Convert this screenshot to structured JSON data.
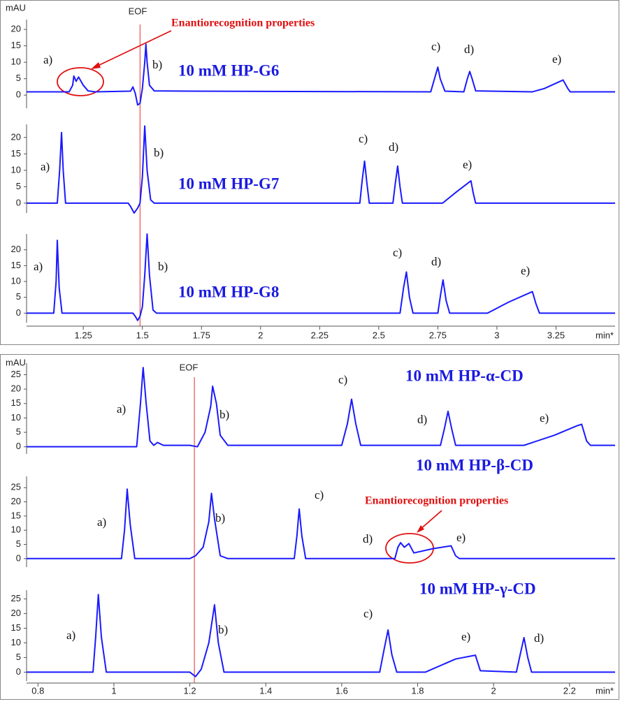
{
  "chart_data": [
    {
      "type": "line",
      "y_label": "mAU",
      "x_label": "min*",
      "xlim": [
        1.01,
        3.5
      ],
      "xticks": [
        1.25,
        1.5,
        1.75,
        2,
        2.25,
        2.5,
        2.75,
        3,
        3.25
      ],
      "eof": {
        "label": "EOF",
        "x": 1.49
      },
      "annotation": "Enantiorecognition properties",
      "series": [
        {
          "name": "10 mM HP-G6",
          "color": "#1a1aff",
          "ylim": [
            -4,
            23
          ],
          "yticks": [
            0,
            5,
            10,
            15,
            20
          ],
          "peak_labels": [
            "a)",
            "b)",
            "c)",
            "d)",
            "e)"
          ],
          "x": [
            1.01,
            1.19,
            1.205,
            1.21,
            1.22,
            1.23,
            1.25,
            1.27,
            1.3,
            1.45,
            1.46,
            1.47,
            1.48,
            1.49,
            1.5,
            1.51,
            1.515,
            1.52,
            1.53,
            1.55,
            1.7,
            2.72,
            2.74,
            2.75,
            2.76,
            2.78,
            2.86,
            2.875,
            2.885,
            2.895,
            2.91,
            3.15,
            3.2,
            3.28,
            3.3,
            3.31,
            3.5
          ],
          "values": [
            1,
            1,
            3,
            5.8,
            4.2,
            5.5,
            3,
            1.3,
            1,
            1.2,
            2.5,
            0.5,
            -3,
            -2.5,
            2,
            10,
            15.5,
            10,
            3,
            1.3,
            1.2,
            1,
            6,
            8.5,
            5,
            1.2,
            1,
            5,
            7.2,
            5,
            1.3,
            1,
            2,
            4.6,
            2,
            1,
            1
          ]
        },
        {
          "name": "10 mM HP-G7",
          "color": "#1a1aff",
          "ylim": [
            -3,
            24
          ],
          "yticks": [
            0,
            5,
            10,
            15,
            20
          ],
          "peak_labels": [
            "a)",
            "b)",
            "c)",
            "d)",
            "e)"
          ],
          "x": [
            1.01,
            1.14,
            1.15,
            1.158,
            1.165,
            1.175,
            1.44,
            1.45,
            1.465,
            1.48,
            1.49,
            1.5,
            1.51,
            1.52,
            1.535,
            1.55,
            2.42,
            2.43,
            2.44,
            2.45,
            2.46,
            2.56,
            2.57,
            2.58,
            2.59,
            2.6,
            2.77,
            2.83,
            2.89,
            2.9,
            2.91,
            3.5
          ],
          "values": [
            0,
            0,
            10,
            21.5,
            10,
            0,
            0,
            -1,
            -3,
            -1.5,
            0,
            8,
            23.5,
            10,
            1,
            0,
            0,
            7,
            12.8,
            6,
            0,
            0,
            6,
            11.3,
            5,
            0,
            0,
            3.5,
            6.8,
            3,
            0,
            0
          ]
        },
        {
          "name": "10 mM HP-G8",
          "color": "#1a1aff",
          "ylim": [
            -3,
            25
          ],
          "yticks": [
            0,
            5,
            10,
            15,
            20
          ],
          "peak_labels": [
            "a)",
            "b)",
            "c)",
            "d)",
            "e)"
          ],
          "x": [
            1.01,
            1.125,
            1.135,
            1.14,
            1.148,
            1.16,
            1.46,
            1.47,
            1.48,
            1.49,
            1.5,
            1.51,
            1.52,
            1.53,
            1.545,
            1.56,
            2.59,
            2.605,
            2.617,
            2.63,
            2.645,
            2.75,
            2.762,
            2.772,
            2.785,
            2.8,
            2.96,
            3.05,
            3.15,
            3.165,
            3.18,
            3.5
          ],
          "values": [
            0,
            0,
            10,
            23,
            8,
            0,
            0,
            -1,
            -2.3,
            -1,
            2,
            12,
            25,
            12,
            1,
            0,
            0,
            8,
            13,
            5,
            0,
            0,
            6,
            10.5,
            4,
            0,
            0,
            3.5,
            6.8,
            3,
            0,
            0
          ]
        }
      ]
    },
    {
      "type": "line",
      "y_label": "mAU",
      "x_label": "min*",
      "xlim": [
        0.77,
        2.32
      ],
      "xticks": [
        0.8,
        1,
        1.2,
        1.4,
        1.6,
        1.8,
        2,
        2.2
      ],
      "eof": {
        "label": "EOF",
        "x": 1.212
      },
      "annotation": "Enantiorecognition properties",
      "series": [
        {
          "name": "10 mM HP-α-CD",
          "color": "#1a1aff",
          "ylim": [
            -2.5,
            29
          ],
          "yticks": [
            0,
            5,
            10,
            15,
            20,
            25
          ],
          "peak_labels": [
            "a)",
            "b)",
            "c)",
            "d)",
            "e)"
          ],
          "x": [
            0.77,
            1.06,
            1.07,
            1.077,
            1.085,
            1.095,
            1.105,
            1.115,
            1.13,
            1.2,
            1.22,
            1.24,
            1.255,
            1.26,
            1.27,
            1.28,
            1.3,
            1.6,
            1.615,
            1.626,
            1.637,
            1.65,
            1.86,
            1.87,
            1.88,
            1.89,
            1.9,
            2.08,
            2.16,
            2.22,
            2.232,
            2.245,
            2.255,
            2.32
          ],
          "values": [
            0,
            0,
            15,
            27.5,
            15,
            2,
            0.5,
            1.5,
            0.5,
            0.5,
            0,
            5,
            14,
            21,
            15,
            4,
            0.5,
            0.5,
            8,
            16.5,
            8,
            0.5,
            0.5,
            6,
            12.3,
            6,
            0.5,
            0.5,
            4,
            7.3,
            7.8,
            2,
            0.5,
            0.5
          ]
        },
        {
          "name": "10 mM HP-β-CD",
          "color": "#1a1aff",
          "ylim": [
            -3,
            29
          ],
          "yticks": [
            0,
            5,
            10,
            15,
            20,
            25
          ],
          "peak_labels": [
            "a)",
            "b)",
            "c)",
            "d)",
            "e)"
          ],
          "x": [
            0.77,
            1.02,
            1.028,
            1.035,
            1.043,
            1.055,
            1.2,
            1.215,
            1.235,
            1.25,
            1.257,
            1.265,
            1.28,
            1.3,
            1.475,
            1.482,
            1.488,
            1.495,
            1.505,
            1.74,
            1.748,
            1.755,
            1.765,
            1.777,
            1.79,
            1.84,
            1.888,
            1.9,
            1.91,
            2.32
          ],
          "values": [
            0,
            0,
            10,
            24.5,
            12,
            0,
            0,
            1,
            4,
            13,
            23,
            14,
            1,
            0,
            0,
            8,
            17.5,
            8,
            0,
            0,
            4,
            5.6,
            4,
            5.3,
            2,
            3.5,
            4.5,
            1,
            0,
            0
          ]
        },
        {
          "name": "10 mM HP-γ-CD",
          "color": "#1a1aff",
          "ylim": [
            -3,
            28
          ],
          "yticks": [
            0,
            5,
            10,
            15,
            20,
            25
          ],
          "peak_labels": [
            "a)",
            "b)",
            "c)",
            "e)",
            "d)"
          ],
          "x": [
            0.77,
            0.945,
            0.952,
            0.959,
            0.967,
            0.98,
            1.2,
            1.215,
            1.23,
            1.25,
            1.265,
            1.275,
            1.29,
            1.7,
            1.712,
            1.722,
            1.732,
            1.745,
            1.82,
            1.9,
            1.952,
            1.965,
            2.06,
            2.07,
            2.08,
            2.09,
            2.1,
            2.32
          ],
          "values": [
            0,
            0,
            12,
            26.5,
            12,
            0,
            0,
            -1.5,
            1,
            10,
            23,
            10,
            0,
            0,
            8,
            14.4,
            6,
            0,
            0,
            4.5,
            5.8,
            0.5,
            0,
            6,
            11.8,
            5,
            0,
            0
          ]
        }
      ]
    }
  ]
}
